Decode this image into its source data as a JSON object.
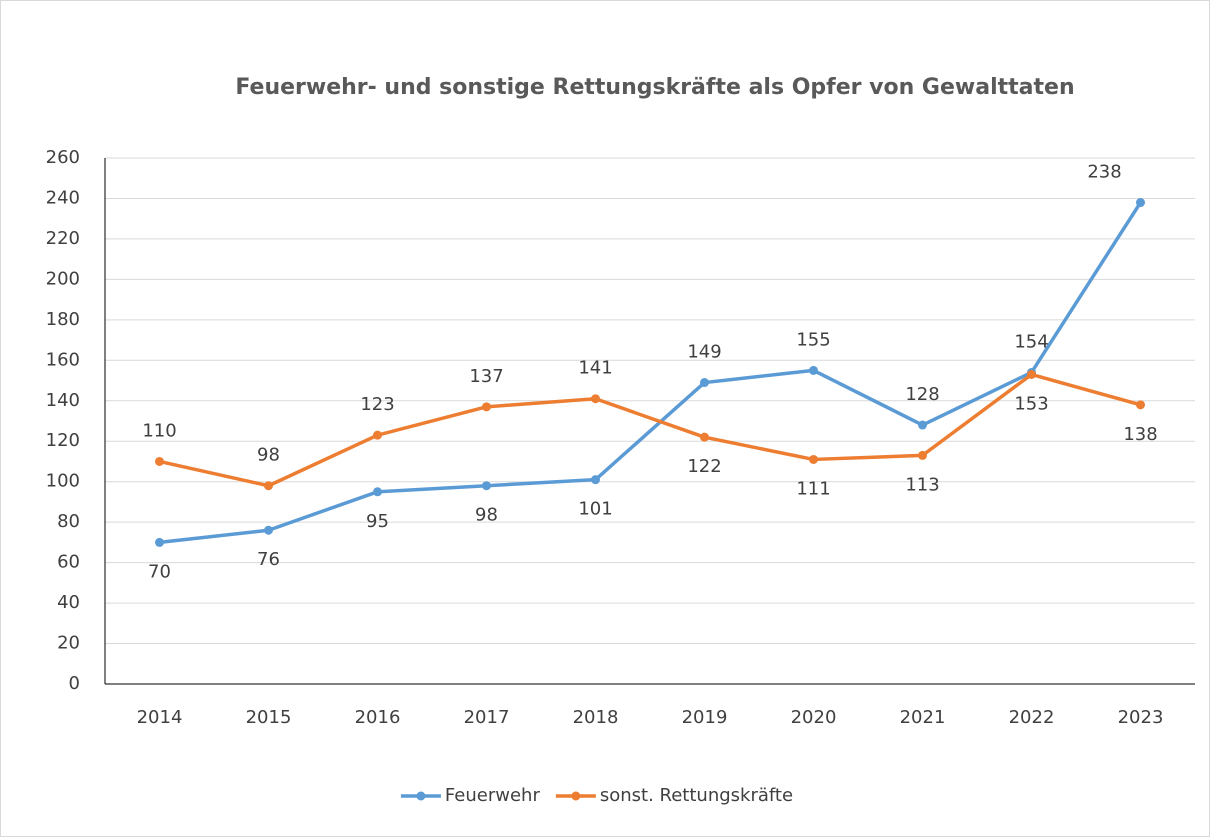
{
  "chart_data": {
    "type": "line",
    "title": "Feuerwehr- und sonstige Rettungskräfte als Opfer von Gewalttaten",
    "categories": [
      "2014",
      "2015",
      "2016",
      "2017",
      "2018",
      "2019",
      "2020",
      "2021",
      "2022",
      "2023"
    ],
    "series": [
      {
        "name": "Feuerwehr",
        "color": "#5b9bd5",
        "values": [
          70,
          76,
          95,
          98,
          101,
          149,
          155,
          128,
          154,
          238
        ]
      },
      {
        "name": "sonst. Rettungskräfte",
        "color": "#ed7d31",
        "values": [
          110,
          98,
          123,
          137,
          141,
          122,
          111,
          113,
          153,
          138
        ]
      }
    ],
    "ylim": [
      0,
      260
    ],
    "yticks": [
      0,
      20,
      40,
      60,
      80,
      100,
      120,
      140,
      160,
      180,
      200,
      220,
      240,
      260
    ],
    "grid": true,
    "legend": "bottom"
  }
}
